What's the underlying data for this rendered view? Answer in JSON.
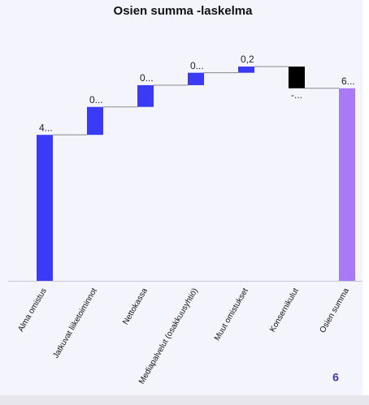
{
  "chart_data": {
    "type": "waterfall",
    "title": "Osien summa -laskelma",
    "categories": [
      "Alma omistus",
      "Jatkuvat liiketoiminnot",
      "Nettokassa",
      "Mediapalvelut (osakkuusyhtiö)",
      "Muut omistukset",
      "Konsernikulut",
      "Osien summa"
    ],
    "values": [
      4.7,
      0.9,
      0.7,
      0.4,
      0.2,
      -0.7,
      6.2
    ],
    "value_labels": [
      "4...",
      "0...",
      "0...",
      "0...",
      "0,2",
      "-...",
      "6..."
    ],
    "measure": [
      "relative",
      "relative",
      "relative",
      "relative",
      "relative",
      "relative",
      "total"
    ],
    "increase_color": "#3b3bf7",
    "decrease_color": "#000000",
    "total_color": "#a97af5"
  },
  "footer_text": "6"
}
